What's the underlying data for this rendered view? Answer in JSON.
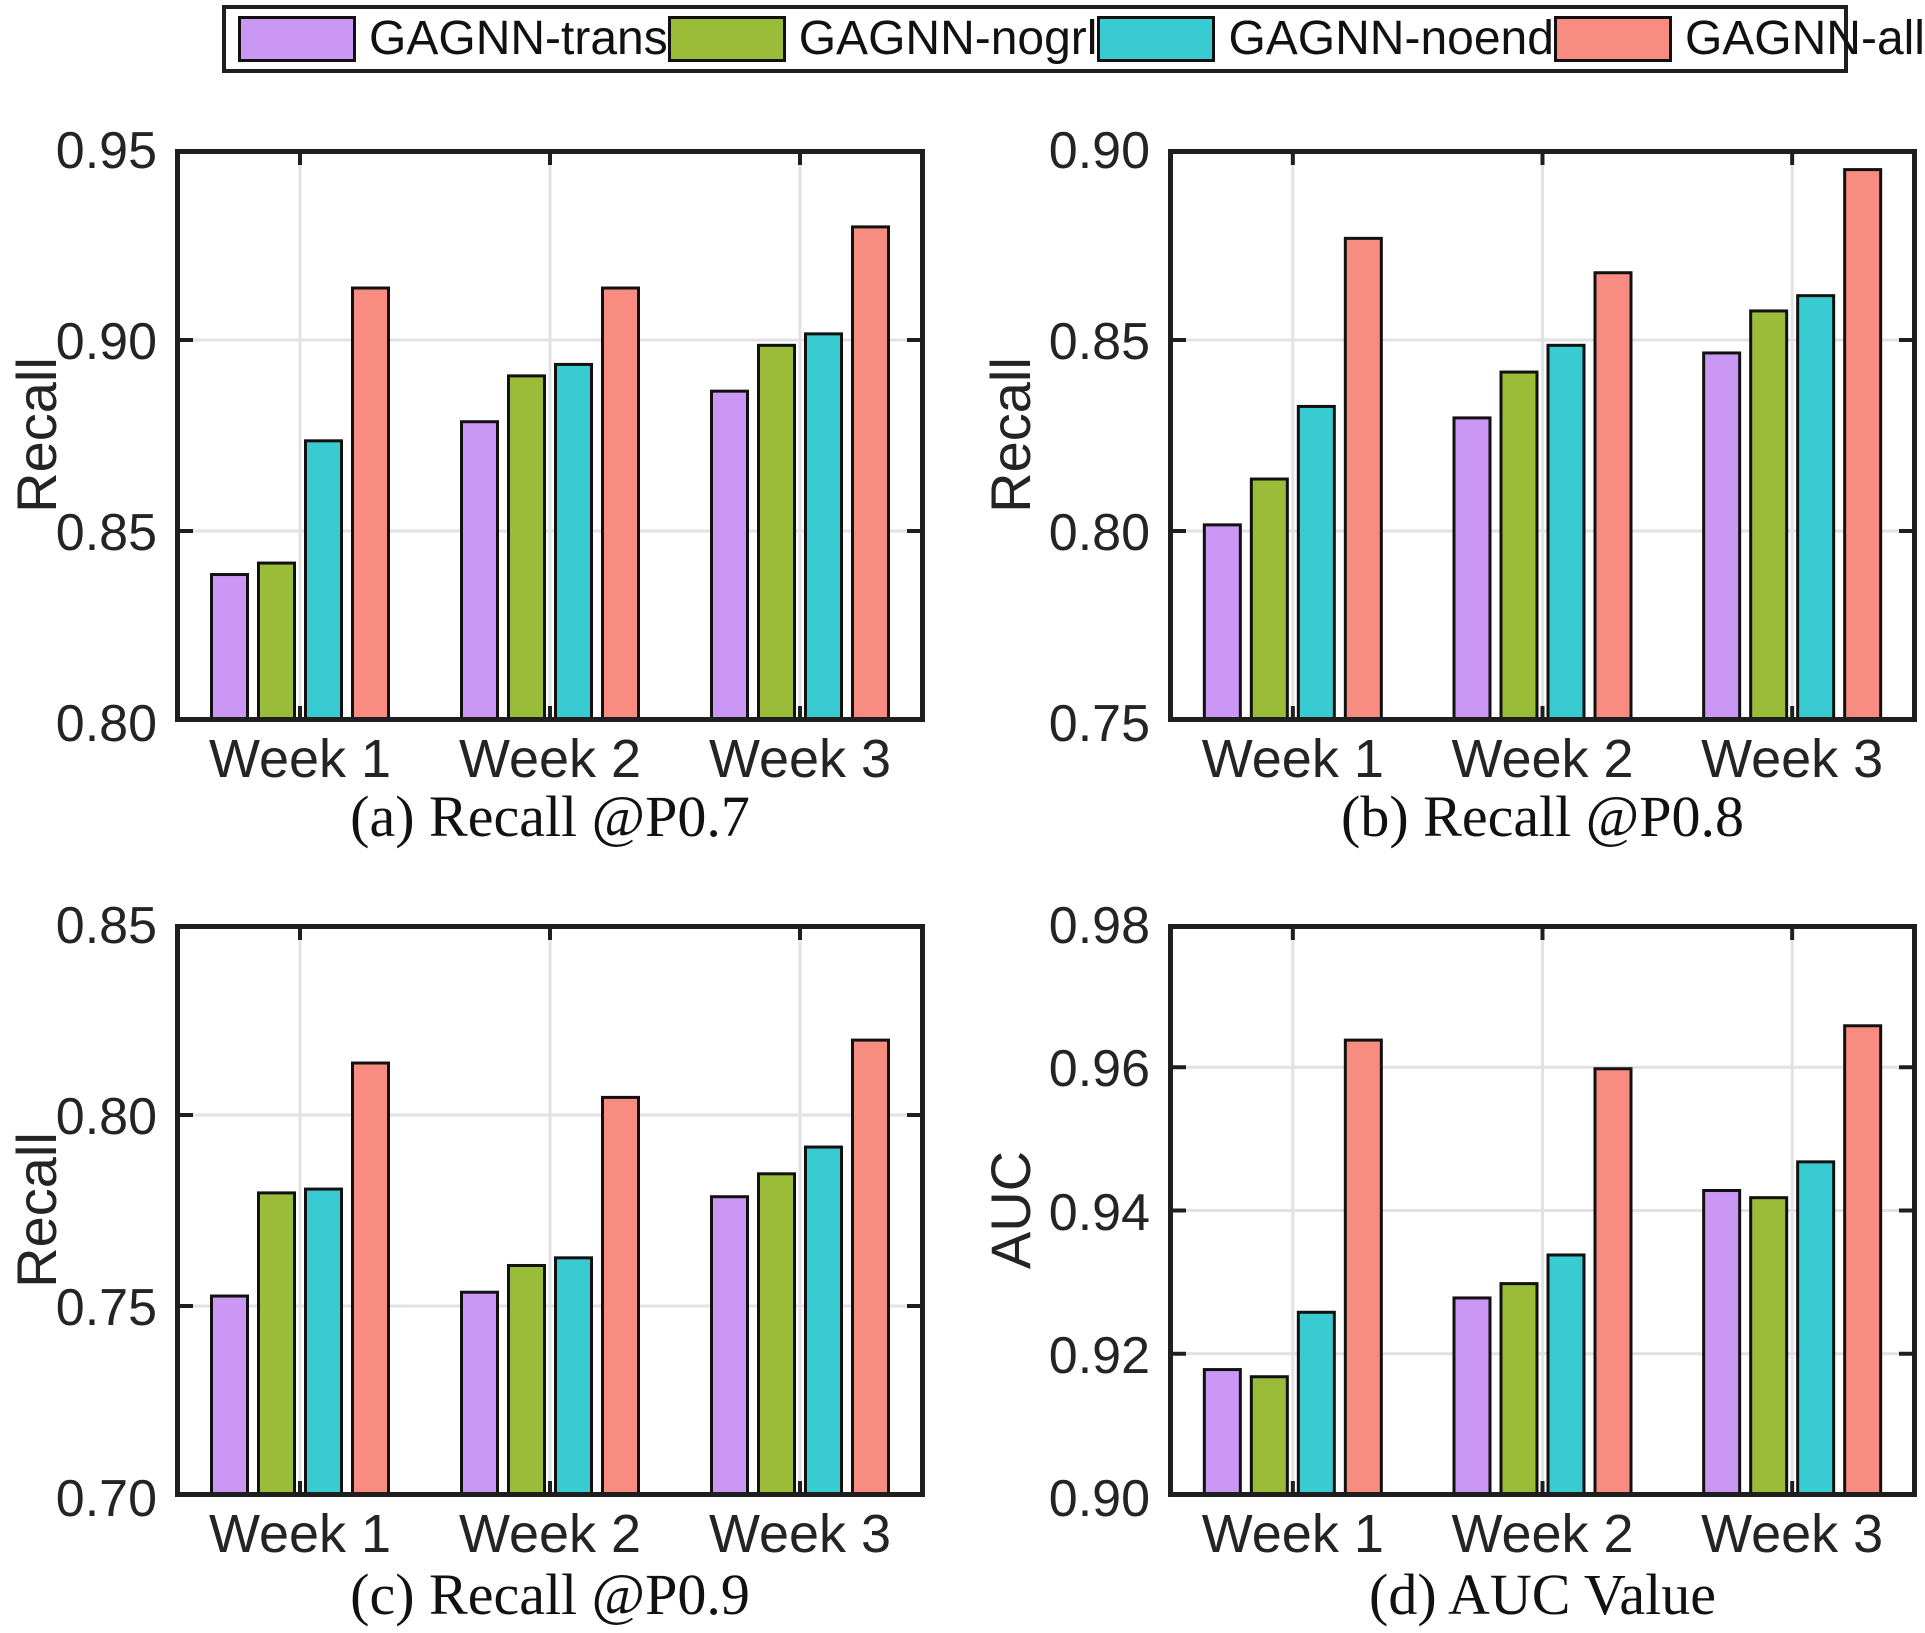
{
  "legend": {
    "items": [
      {
        "label": "GAGNN-trans",
        "color": "#cb97f5"
      },
      {
        "label": "GAGNN-nogrl",
        "color": "#9abc39"
      },
      {
        "label": "GAGNN-noend",
        "color": "#38cbd2"
      },
      {
        "label": "GAGNN-all",
        "color": "#f98c80"
      }
    ]
  },
  "colors": {
    "axis": "#1f1f1f",
    "grid": "#e2e2e2",
    "bar_edge": "#111111",
    "tick_text": "#242424",
    "background": "#ffffff"
  },
  "chart_data": [
    {
      "id": "a",
      "type": "bar",
      "caption": "(a) Recall @P0.7",
      "ylabel": "Recall",
      "xlabel": "",
      "ylim": [
        0.8,
        0.95
      ],
      "yticks": [
        0.8,
        0.85,
        0.9,
        0.95
      ],
      "ytick_labels": [
        "0.80",
        "0.85",
        "0.90",
        "0.95"
      ],
      "grid": true,
      "legend_position": "top-outside",
      "categories": [
        "Week 1",
        "Week 2",
        "Week 3"
      ],
      "series": [
        {
          "name": "GAGNN-trans",
          "values": [
            0.839,
            0.879,
            0.887
          ]
        },
        {
          "name": "GAGNN-nogrl",
          "values": [
            0.842,
            0.891,
            0.899
          ]
        },
        {
          "name": "GAGNN-noend",
          "values": [
            0.874,
            0.894,
            0.902
          ]
        },
        {
          "name": "GAGNN-all",
          "values": [
            0.914,
            0.914,
            0.93
          ]
        }
      ]
    },
    {
      "id": "b",
      "type": "bar",
      "caption": "(b) Recall @P0.8",
      "ylabel": "Recall",
      "xlabel": "",
      "ylim": [
        0.75,
        0.9
      ],
      "yticks": [
        0.75,
        0.8,
        0.85,
        0.9
      ],
      "ytick_labels": [
        "0.75",
        "0.80",
        "0.85",
        "0.90"
      ],
      "grid": true,
      "legend_position": "top-outside",
      "categories": [
        "Week 1",
        "Week 2",
        "Week 3"
      ],
      "series": [
        {
          "name": "GAGNN-trans",
          "values": [
            0.802,
            0.83,
            0.847
          ]
        },
        {
          "name": "GAGNN-nogrl",
          "values": [
            0.814,
            0.842,
            0.858
          ]
        },
        {
          "name": "GAGNN-noend",
          "values": [
            0.833,
            0.849,
            0.862
          ]
        },
        {
          "name": "GAGNN-all",
          "values": [
            0.877,
            0.868,
            0.895
          ]
        }
      ]
    },
    {
      "id": "c",
      "type": "bar",
      "caption": "(c) Recall @P0.9",
      "ylabel": "Recall",
      "xlabel": "",
      "ylim": [
        0.7,
        0.85
      ],
      "yticks": [
        0.7,
        0.75,
        0.8,
        0.85
      ],
      "ytick_labels": [
        "0.70",
        "0.75",
        "0.80",
        "0.85"
      ],
      "grid": true,
      "legend_position": "top-outside",
      "categories": [
        "Week 1",
        "Week 2",
        "Week 3"
      ],
      "series": [
        {
          "name": "GAGNN-trans",
          "values": [
            0.753,
            0.754,
            0.779
          ]
        },
        {
          "name": "GAGNN-nogrl",
          "values": [
            0.78,
            0.761,
            0.785
          ]
        },
        {
          "name": "GAGNN-noend",
          "values": [
            0.781,
            0.763,
            0.792
          ]
        },
        {
          "name": "GAGNN-all",
          "values": [
            0.814,
            0.805,
            0.82
          ]
        }
      ]
    },
    {
      "id": "d",
      "type": "bar",
      "caption": "(d) AUC Value",
      "ylabel": "AUC",
      "xlabel": "",
      "ylim": [
        0.9,
        0.98
      ],
      "yticks": [
        0.9,
        0.92,
        0.94,
        0.96,
        0.98
      ],
      "ytick_labels": [
        "0.90",
        "0.92",
        "0.94",
        "0.96",
        "0.98"
      ],
      "grid": true,
      "legend_position": "top-outside",
      "categories": [
        "Week 1",
        "Week 2",
        "Week 3"
      ],
      "series": [
        {
          "name": "GAGNN-trans",
          "values": [
            0.918,
            0.928,
            0.943
          ]
        },
        {
          "name": "GAGNN-nogrl",
          "values": [
            0.917,
            0.93,
            0.942
          ]
        },
        {
          "name": "GAGNN-noend",
          "values": [
            0.926,
            0.934,
            0.947
          ]
        },
        {
          "name": "GAGNN-all",
          "values": [
            0.964,
            0.96,
            0.966
          ]
        }
      ]
    }
  ]
}
